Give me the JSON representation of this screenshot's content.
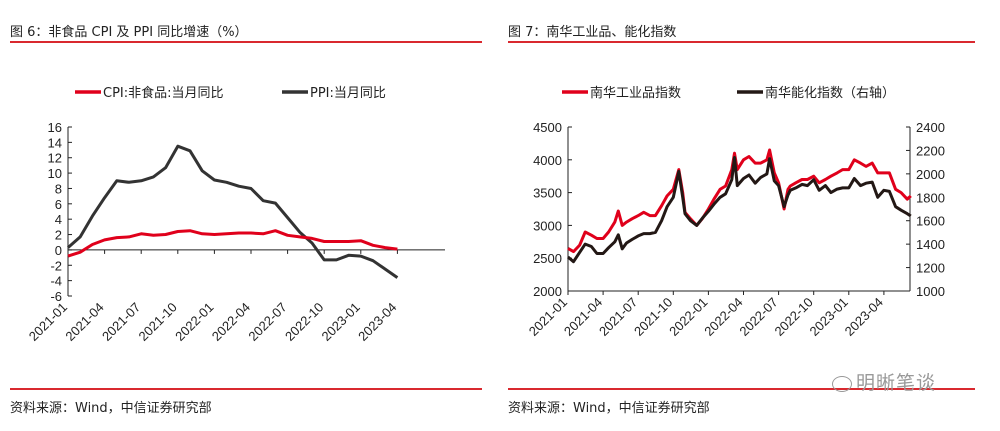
{
  "chart_data": [
    {
      "type": "line",
      "title": "图 6：非食品 CPI 及 PPI 同比增速（%）",
      "source": "资料来源：Wind，中信证券研究部",
      "ylim": [
        -6,
        16
      ],
      "yticks": [
        "16",
        "14",
        "12",
        "10",
        "8",
        "6",
        "4",
        "2",
        "0",
        "-2",
        "-4",
        "-6"
      ],
      "xticks": [
        "2021-01",
        "2021-04",
        "2021-07",
        "2021-10",
        "2022-01",
        "2022-04",
        "2022-07",
        "2022-10",
        "2023-01",
        "2023-04"
      ],
      "grid": false,
      "legend": "top",
      "x": [
        "2021-01",
        "2021-02",
        "2021-03",
        "2021-04",
        "2021-05",
        "2021-06",
        "2021-07",
        "2021-08",
        "2021-09",
        "2021-10",
        "2021-11",
        "2021-12",
        "2022-01",
        "2022-02",
        "2022-03",
        "2022-04",
        "2022-05",
        "2022-06",
        "2022-07",
        "2022-08",
        "2022-09",
        "2022-10",
        "2022-11",
        "2022-12",
        "2023-01",
        "2023-02",
        "2023-03",
        "2023-04"
      ],
      "series": [
        {
          "name": "CPI:非食品:当月同比",
          "color": "#e0001b",
          "values": [
            -0.8,
            -0.3,
            0.7,
            1.3,
            1.6,
            1.7,
            2.1,
            1.9,
            2.0,
            2.4,
            2.5,
            2.1,
            2.0,
            2.1,
            2.2,
            2.2,
            2.1,
            2.5,
            1.9,
            1.7,
            1.5,
            1.1,
            1.1,
            1.1,
            1.2,
            0.6,
            0.3,
            0.1
          ]
        },
        {
          "name": "PPI:当月同比",
          "color": "#333333",
          "values": [
            0.3,
            1.7,
            4.4,
            6.8,
            9.0,
            8.8,
            9.0,
            9.5,
            10.7,
            13.5,
            12.9,
            10.3,
            9.1,
            8.8,
            8.3,
            8.0,
            6.4,
            6.1,
            4.2,
            2.3,
            0.9,
            -1.3,
            -1.3,
            -0.7,
            -0.8,
            -1.4,
            -2.5,
            -3.6
          ]
        }
      ]
    },
    {
      "type": "line",
      "title": "图 7：南华工业品、能化指数",
      "source": "资料来源：Wind，中信证券研究部",
      "ylim": [
        2000,
        4500
      ],
      "y2lim": [
        1000,
        2400
      ],
      "yticks": [
        "4500",
        "4000",
        "3500",
        "3000",
        "2500",
        "2000"
      ],
      "y2ticks": [
        "2400",
        "2200",
        "2000",
        "1800",
        "1600",
        "1400",
        "1200",
        "1000"
      ],
      "xticks": [
        "2021-01",
        "2021-04",
        "2021-07",
        "2021-10",
        "2022-01",
        "2022-04",
        "2022-07",
        "2022-10",
        "2023-01",
        "2023-04"
      ],
      "grid": false,
      "legend": "top",
      "x": [
        "2021-01-01",
        "2021-01-15",
        "2021-02-01",
        "2021-02-15",
        "2021-03-01",
        "2021-03-15",
        "2021-04-01",
        "2021-04-15",
        "2021-05-01",
        "2021-05-10",
        "2021-05-20",
        "2021-06-01",
        "2021-06-15",
        "2021-07-01",
        "2021-07-15",
        "2021-08-01",
        "2021-08-15",
        "2021-09-01",
        "2021-09-15",
        "2021-10-01",
        "2021-10-15",
        "2021-10-25",
        "2021-11-01",
        "2021-11-15",
        "2021-12-01",
        "2021-12-15",
        "2022-01-01",
        "2022-01-15",
        "2022-02-01",
        "2022-02-15",
        "2022-03-01",
        "2022-03-08",
        "2022-03-15",
        "2022-04-01",
        "2022-04-15",
        "2022-05-01",
        "2022-05-15",
        "2022-06-01",
        "2022-06-08",
        "2022-06-20",
        "2022-07-01",
        "2022-07-15",
        "2022-07-25",
        "2022-08-01",
        "2022-08-15",
        "2022-09-01",
        "2022-09-15",
        "2022-10-01",
        "2022-10-15",
        "2022-11-01",
        "2022-11-15",
        "2022-12-01",
        "2022-12-15",
        "2023-01-01",
        "2023-01-15",
        "2023-02-01",
        "2023-02-15",
        "2023-03-01",
        "2023-03-15",
        "2023-04-01",
        "2023-04-15",
        "2023-05-01",
        "2023-05-15",
        "2023-06-01",
        "2023-06-10"
      ],
      "series": [
        {
          "name": "南华工业品指数",
          "axis": "left",
          "color": "#e0001b",
          "values": [
            2650,
            2600,
            2700,
            2900,
            2850,
            2800,
            2800,
            2900,
            3050,
            3220,
            3000,
            3050,
            3100,
            3150,
            3200,
            3150,
            3150,
            3300,
            3450,
            3550,
            3850,
            3500,
            3200,
            3100,
            3000,
            3100,
            3250,
            3400,
            3550,
            3600,
            3850,
            4100,
            3850,
            4000,
            4050,
            3950,
            3950,
            4000,
            4150,
            3800,
            3650,
            3250,
            3550,
            3600,
            3650,
            3700,
            3700,
            3750,
            3650,
            3700,
            3750,
            3800,
            3850,
            3850,
            4000,
            3950,
            3900,
            3950,
            3800,
            3800,
            3800,
            3550,
            3500,
            3400,
            3450
          ]
        },
        {
          "name": "南华能化指数（右轴）",
          "axis": "right",
          "color": "#231815",
          "values": [
            1290,
            1250,
            1330,
            1400,
            1380,
            1320,
            1320,
            1370,
            1420,
            1480,
            1360,
            1410,
            1440,
            1470,
            1490,
            1490,
            1500,
            1600,
            1720,
            1800,
            2020,
            1800,
            1660,
            1600,
            1560,
            1620,
            1680,
            1740,
            1800,
            1830,
            1950,
            2140,
            1900,
            1960,
            1990,
            1920,
            1970,
            2000,
            2130,
            1940,
            1900,
            1720,
            1820,
            1860,
            1880,
            1910,
            1900,
            1950,
            1860,
            1900,
            1840,
            1870,
            1880,
            1880,
            1960,
            1900,
            1920,
            1930,
            1800,
            1860,
            1850,
            1720,
            1690,
            1660,
            1640
          ]
        }
      ]
    }
  ],
  "watermark": "明晰笔谈"
}
